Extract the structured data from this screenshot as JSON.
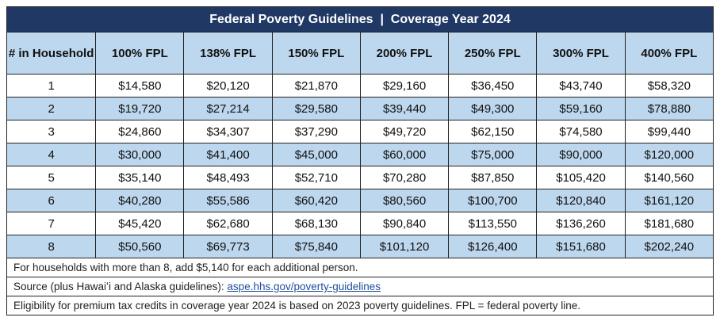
{
  "table": {
    "title": "Federal Poverty Guidelines  |  Coverage Year 2024",
    "header": [
      "# in Household",
      "100% FPL",
      "138% FPL",
      "150% FPL",
      "200% FPL",
      "250% FPL",
      "300% FPL",
      "400% FPL"
    ],
    "rows": [
      [
        "1",
        "$14,580",
        "$20,120",
        "$21,870",
        "$29,160",
        "$36,450",
        "$43,740",
        "$58,320"
      ],
      [
        "2",
        "$19,720",
        "$27,214",
        "$29,580",
        "$39,440",
        "$49,300",
        "$59,160",
        "$78,880"
      ],
      [
        "3",
        "$24,860",
        "$34,307",
        "$37,290",
        "$49,720",
        "$62,150",
        "$74,580",
        "$99,440"
      ],
      [
        "4",
        "$30,000",
        "$41,400",
        "$45,000",
        "$60,000",
        "$75,000",
        "$90,000",
        "$120,000"
      ],
      [
        "5",
        "$35,140",
        "$48,493",
        "$52,710",
        "$70,280",
        "$87,850",
        "$105,420",
        "$140,560"
      ],
      [
        "6",
        "$40,280",
        "$55,586",
        "$60,420",
        "$80,560",
        "$100,700",
        "$120,840",
        "$161,120"
      ],
      [
        "7",
        "$45,420",
        "$62,680",
        "$68,130",
        "$90,840",
        "$113,550",
        "$136,260",
        "$181,680"
      ],
      [
        "8",
        "$50,560",
        "$69,773",
        "$75,840",
        "$101,120",
        "$126,400",
        "$151,680",
        "$202,240"
      ]
    ],
    "notes": {
      "additional": "For households with more than 8, add $5,140 for each additional person.",
      "source_label": "Source (plus Hawaiʻi and Alaska guidelines):",
      "source_link": "aspe.hhs.gov/poverty-guidelines",
      "eligibility": "Eligibility for premium tax credits in coverage year 2024 is based on 2023 poverty guidelines.  FPL = federal poverty line."
    }
  }
}
